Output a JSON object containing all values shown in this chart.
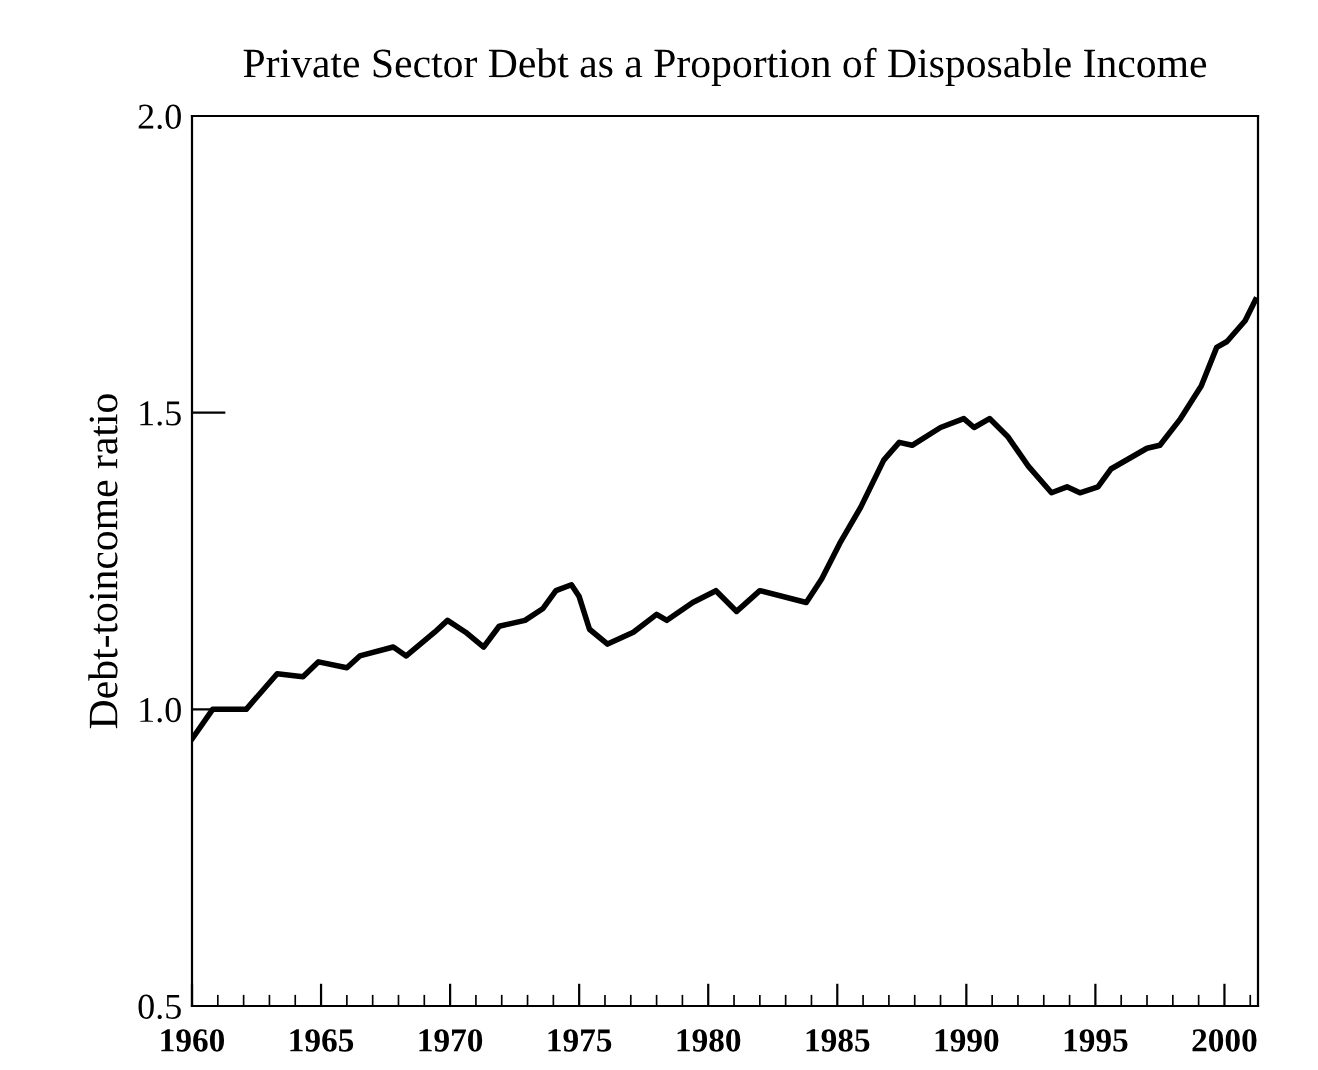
{
  "chart_data": {
    "type": "line",
    "title": "Private Sector Debt as a Proportion of Disposable Income",
    "ylabel": "Debt-toincome ratio",
    "x": [
      1960,
      1960.8,
      1962.1,
      1963.3,
      1964.3,
      1964.9,
      1966.0,
      1966.5,
      1967.8,
      1968.3,
      1969.4,
      1969.9,
      1970.6,
      1971.3,
      1971.9,
      1972.9,
      1973.6,
      1974.1,
      1974.7,
      1975.0,
      1975.4,
      1976.1,
      1977.1,
      1978.0,
      1978.4,
      1979.4,
      1980.3,
      1981.1,
      1982.0,
      1983.8,
      1984.4,
      1985.1,
      1985.9,
      1986.8,
      1987.4,
      1987.9,
      1989.0,
      1989.9,
      1990.3,
      1990.9,
      1991.6,
      1992.4,
      1993.3,
      1993.9,
      1994.4,
      1995.1,
      1995.6,
      1997.0,
      1997.5,
      1998.3,
      1999.1,
      1999.7,
      2000.1,
      2000.8,
      2001.2
    ],
    "series": [
      {
        "color": "#000000",
        "values": [
          0.95,
          1.0,
          1.0,
          1.06,
          1.055,
          1.08,
          1.07,
          1.09,
          1.105,
          1.09,
          1.13,
          1.15,
          1.13,
          1.105,
          1.14,
          1.15,
          1.17,
          1.2,
          1.21,
          1.19,
          1.135,
          1.11,
          1.13,
          1.16,
          1.15,
          1.18,
          1.2,
          1.165,
          1.2,
          1.18,
          1.22,
          1.28,
          1.34,
          1.42,
          1.45,
          1.445,
          1.475,
          1.49,
          1.475,
          1.49,
          1.46,
          1.41,
          1.365,
          1.375,
          1.365,
          1.375,
          1.405,
          1.44,
          1.445,
          1.49,
          1.545,
          1.61,
          1.62,
          1.655,
          1.69
        ]
      }
    ],
    "xlim": [
      1960,
      2001.3
    ],
    "xticks": [
      1960,
      1965,
      1970,
      1975,
      1980,
      1985,
      1990,
      1995,
      2000
    ],
    "ylim": [
      0.5,
      2.0
    ],
    "yticks": [
      0.5,
      {
        "value": 1,
        "label": "1.0"
      },
      1.5,
      {
        "value": 2,
        "label": "2.0"
      }
    ],
    "grid": false,
    "legend": false,
    "line_style": "solid",
    "marker": "none"
  }
}
